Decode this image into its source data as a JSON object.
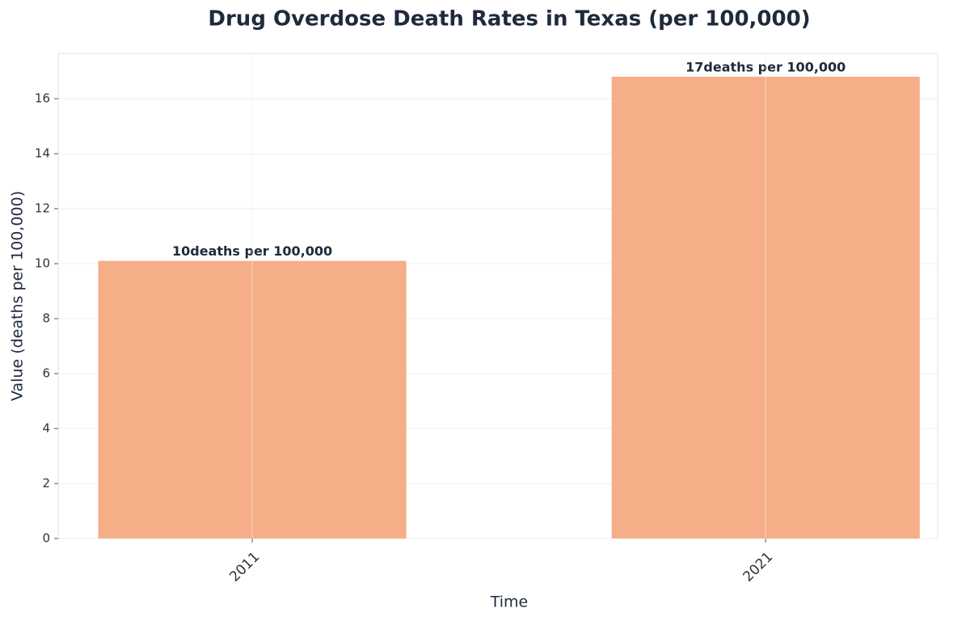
{
  "chart_data": {
    "type": "bar",
    "title": "Drug Overdose Death Rates in Texas (per 100,000)",
    "x_label": "Time",
    "y_label": "Value (deaths per 100,000)",
    "categories": [
      "2011",
      "2021"
    ],
    "values": [
      10.1,
      16.8
    ],
    "value_labels": [
      "10deaths per 100,000",
      "17deaths per 100,000"
    ],
    "color": "#f5ae87",
    "ylim": [
      0,
      17.65
    ],
    "yticks": [
      0,
      2,
      4,
      6,
      8,
      10,
      12,
      14,
      16
    ],
    "grid": true
  }
}
